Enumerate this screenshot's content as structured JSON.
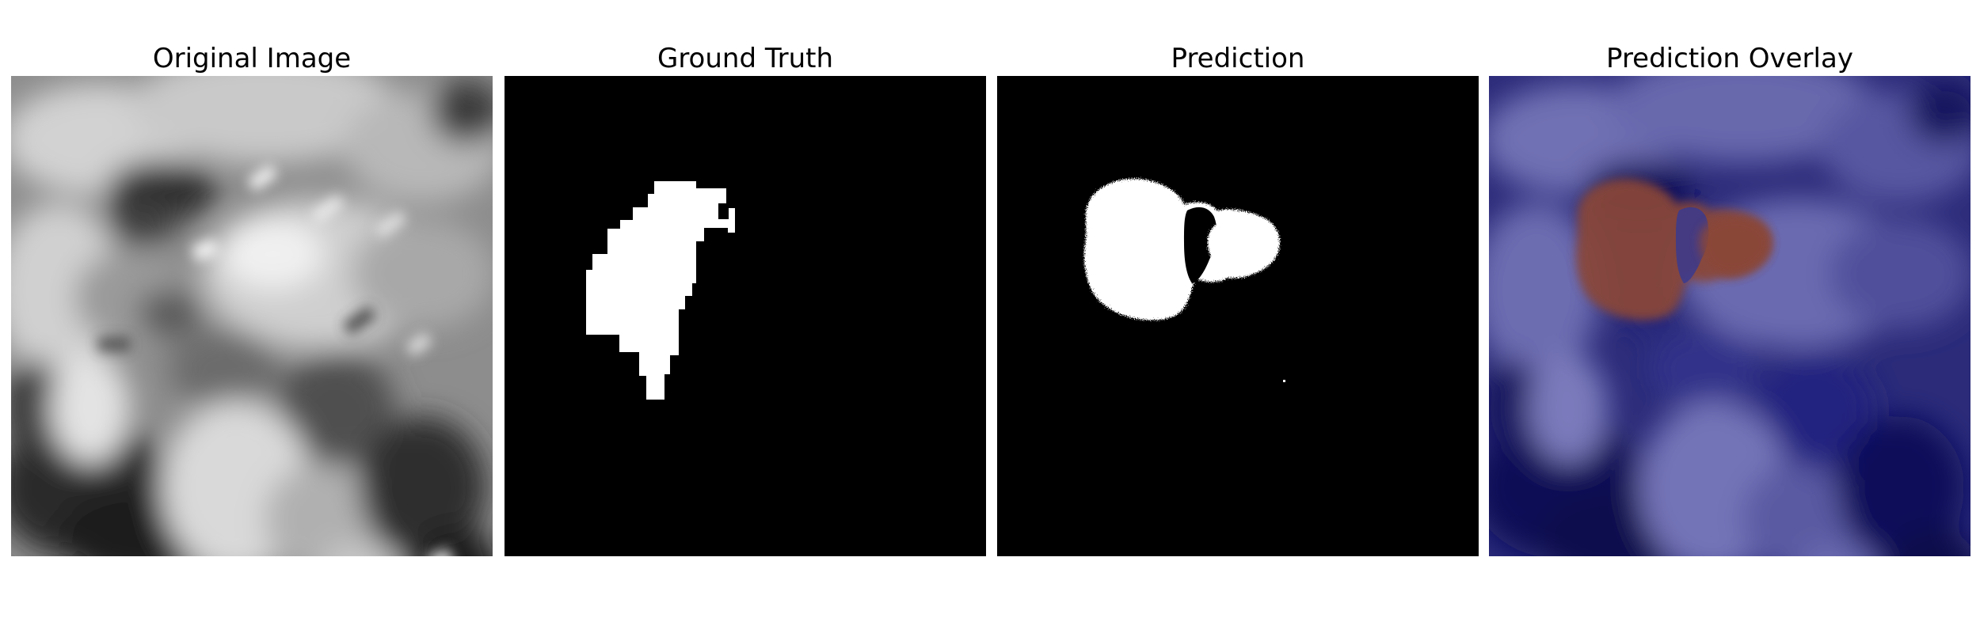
{
  "panels": [
    {
      "title": "Original Image",
      "kind": "grayscale-mri-crop"
    },
    {
      "title": "Ground Truth",
      "kind": "binary-mask"
    },
    {
      "title": "Prediction",
      "kind": "binary-mask"
    },
    {
      "title": "Prediction Overlay",
      "kind": "overlay"
    }
  ],
  "colors": {
    "background": "#ffffff",
    "mask_background": "#000000",
    "mask_foreground": "#ffffff",
    "overlay_base": "#0b0b5e",
    "overlay_highlight": "#8b4a3a"
  }
}
